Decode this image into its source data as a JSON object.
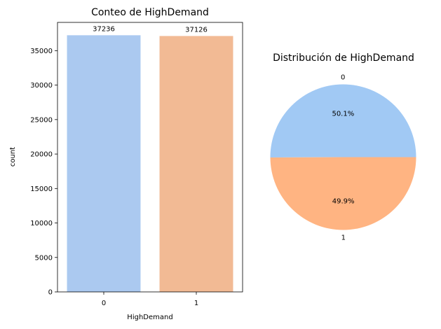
{
  "chart_data": [
    {
      "type": "bar",
      "title": "Conteo de HighDemand",
      "xlabel": "HighDemand",
      "ylabel": "count",
      "categories": [
        "0",
        "1"
      ],
      "values": [
        37236,
        37126
      ],
      "data_labels": [
        "37236",
        "37126"
      ],
      "colors": [
        "#abc9f0",
        "#f2ba94"
      ],
      "ylim": [
        0,
        39100
      ],
      "yticks": [
        0,
        5000,
        10000,
        15000,
        20000,
        25000,
        30000,
        35000
      ],
      "grid": false
    },
    {
      "type": "pie",
      "title": "Distribución de HighDemand",
      "labels": [
        "0",
        "1"
      ],
      "values": [
        37236,
        37126
      ],
      "percent_labels": [
        "50.1%",
        "49.9%"
      ],
      "colors": [
        "#a1c9f4",
        "#ffb482"
      ]
    }
  ]
}
